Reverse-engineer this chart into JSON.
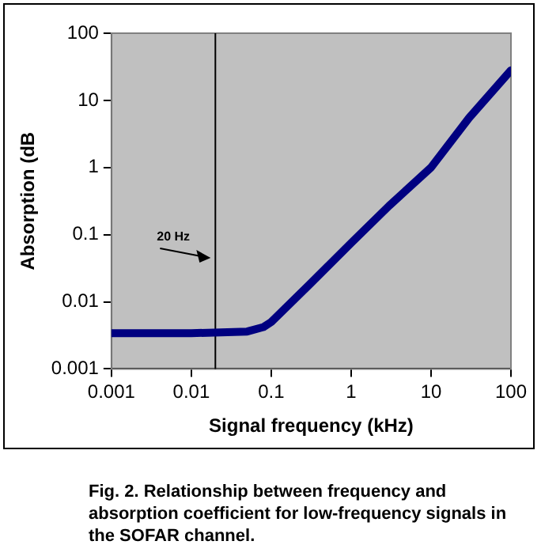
{
  "chart_data": {
    "type": "line",
    "xlabel": "Signal frequency (kHz)",
    "ylabel": "Absorption (dB",
    "x": [
      0.001,
      0.01,
      0.05,
      0.08,
      0.1,
      0.3,
      1,
      3,
      10,
      30,
      100
    ],
    "series": [
      {
        "color": "#000080",
        "values": [
          0.0034,
          0.0034,
          0.0036,
          0.0042,
          0.005,
          0.018,
          0.075,
          0.27,
          1,
          5.5,
          28
        ]
      }
    ],
    "log": "xy",
    "xlim": [
      0.001,
      100
    ],
    "ylim": [
      0.001,
      100
    ],
    "xticks": [
      0.001,
      0.01,
      0.1,
      1,
      10,
      100
    ],
    "yticks": [
      0.001,
      0.01,
      0.1,
      1,
      10,
      100
    ],
    "grid": false,
    "legend": false,
    "marker": "none",
    "line_style": "solid",
    "ref_lines": [
      {
        "axis": "x",
        "value": 0.02,
        "color": "#000000"
      }
    ],
    "annotations": [
      {
        "text": "20 Hz",
        "x": 0.02,
        "y": 0.045
      },
      "Fig. 2. Relationship between frequency and absorption coefficient for low-frequency signals in the SOFAR channel."
    ]
  }
}
